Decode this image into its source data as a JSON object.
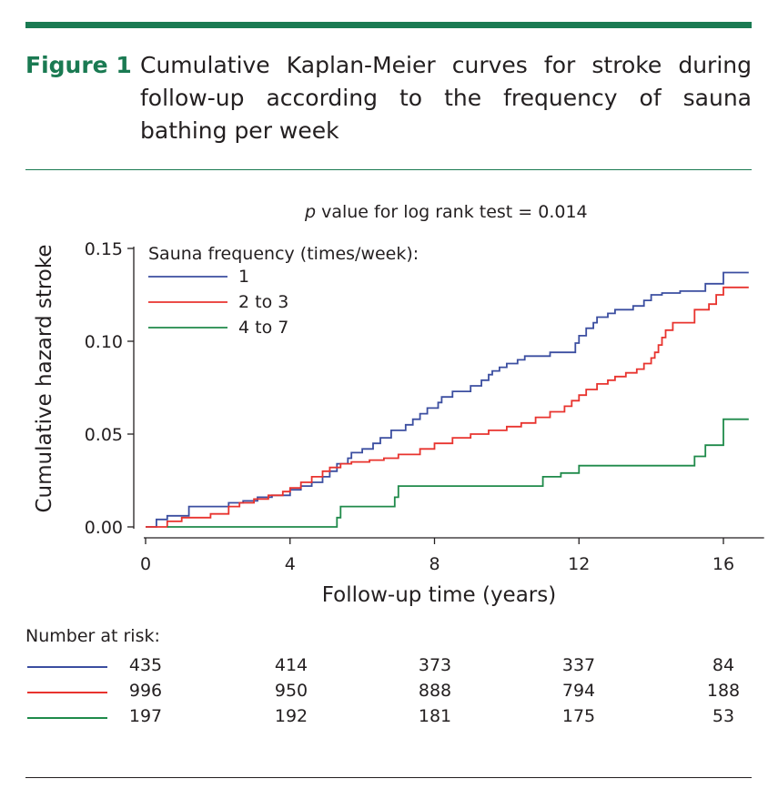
{
  "caption": {
    "label": "Figure 1",
    "text": "Cumulative Kaplan-Meier curves for stroke during follow-up according to the frequency of sauna bathing per week"
  },
  "chart_data": {
    "type": "line",
    "step": true,
    "annotation": "p value for log rank test = 0.014",
    "xlabel": "Follow-up time (years)",
    "ylabel": "Cumulative hazard stroke",
    "xlim": [
      0,
      17
    ],
    "ylim": [
      0,
      0.15
    ],
    "x_ticks": [
      0,
      4,
      8,
      12,
      16
    ],
    "x_tick_labels": [
      "0",
      "4",
      "8",
      "12",
      "16"
    ],
    "y_ticks": [
      0,
      0.05,
      0.1,
      0.15
    ],
    "y_tick_labels": [
      "0.00",
      "0.05",
      "0.10",
      "0.15"
    ],
    "grid": false,
    "legend": {
      "title": "Sauna frequency (times/week):",
      "placement": "top-left"
    },
    "series": [
      {
        "name": "1",
        "color": "#3b4ea0",
        "x": [
          0,
          0.3,
          0.6,
          1.2,
          2.3,
          2.7,
          3.1,
          3.5,
          4.0,
          4.3,
          4.6,
          4.9,
          5.1,
          5.3,
          5.6,
          5.7,
          6.0,
          6.3,
          6.5,
          6.8,
          7.2,
          7.4,
          7.6,
          7.8,
          8.1,
          8.2,
          8.5,
          9.0,
          9.3,
          9.5,
          9.6,
          9.8,
          10.0,
          10.3,
          10.5,
          11.2,
          11.9,
          12.0,
          12.2,
          12.4,
          12.5,
          12.8,
          13.0,
          13.5,
          13.8,
          14.0,
          14.3,
          14.8,
          15.5,
          16.0,
          16.7
        ],
        "y": [
          0,
          0.004,
          0.006,
          0.011,
          0.013,
          0.014,
          0.016,
          0.017,
          0.02,
          0.022,
          0.024,
          0.027,
          0.03,
          0.034,
          0.037,
          0.04,
          0.042,
          0.045,
          0.048,
          0.052,
          0.055,
          0.058,
          0.061,
          0.064,
          0.067,
          0.07,
          0.073,
          0.076,
          0.079,
          0.082,
          0.084,
          0.086,
          0.088,
          0.09,
          0.092,
          0.094,
          0.099,
          0.103,
          0.107,
          0.11,
          0.113,
          0.115,
          0.117,
          0.119,
          0.122,
          0.125,
          0.126,
          0.127,
          0.131,
          0.137,
          0.137
        ]
      },
      {
        "name": "2 to 3",
        "color": "#e8332e",
        "x": [
          0,
          0.6,
          1.0,
          1.8,
          2.3,
          2.6,
          3.0,
          3.4,
          3.8,
          4.0,
          4.3,
          4.6,
          4.9,
          5.1,
          5.4,
          5.7,
          6.2,
          6.6,
          7.0,
          7.6,
          8.0,
          8.5,
          9.0,
          9.5,
          10.0,
          10.4,
          10.8,
          11.2,
          11.6,
          11.8,
          12.0,
          12.2,
          12.5,
          12.8,
          13.0,
          13.3,
          13.6,
          13.8,
          14.0,
          14.1,
          14.2,
          14.3,
          14.4,
          14.6,
          15.2,
          15.6,
          15.8,
          16.0,
          16.7
        ],
        "y": [
          0,
          0.003,
          0.005,
          0.007,
          0.011,
          0.013,
          0.015,
          0.017,
          0.019,
          0.021,
          0.024,
          0.027,
          0.03,
          0.032,
          0.034,
          0.035,
          0.036,
          0.037,
          0.039,
          0.042,
          0.045,
          0.048,
          0.05,
          0.052,
          0.054,
          0.056,
          0.059,
          0.062,
          0.065,
          0.068,
          0.071,
          0.074,
          0.077,
          0.079,
          0.081,
          0.083,
          0.085,
          0.088,
          0.091,
          0.094,
          0.098,
          0.102,
          0.106,
          0.11,
          0.117,
          0.12,
          0.125,
          0.129,
          0.129
        ]
      },
      {
        "name": "4 to 7",
        "color": "#1f8a4a",
        "x": [
          0.6,
          5.3,
          5.4,
          6.9,
          7.0,
          11.0,
          11.5,
          12.0,
          15.2,
          15.5,
          16.0,
          16.7
        ],
        "y": [
          0,
          0.005,
          0.011,
          0.016,
          0.022,
          0.027,
          0.029,
          0.033,
          0.038,
          0.044,
          0.058,
          0.058
        ]
      }
    ]
  },
  "risk_table": {
    "title": "Number at risk:",
    "rows": [
      {
        "color": "#3b4ea0",
        "values": [
          "435",
          "414",
          "373",
          "337",
          "84"
        ]
      },
      {
        "color": "#e8332e",
        "values": [
          "996",
          "950",
          "888",
          "794",
          "188"
        ]
      },
      {
        "color": "#1f8a4a",
        "values": [
          "197",
          "192",
          "181",
          "175",
          "53"
        ]
      }
    ]
  }
}
